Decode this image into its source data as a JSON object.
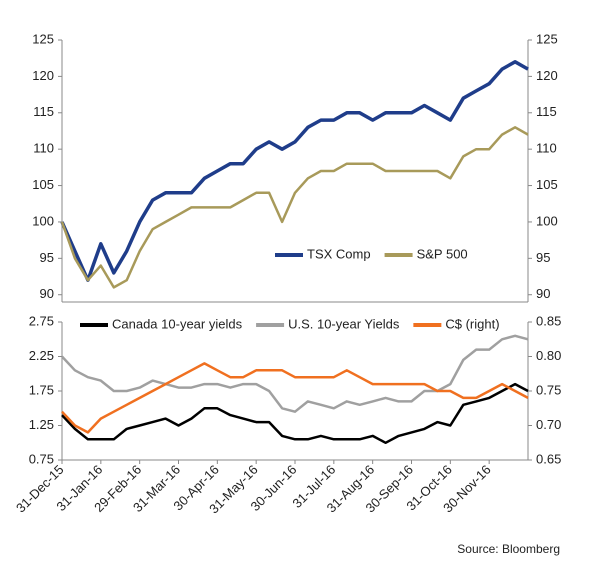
{
  "chart_data": [
    {
      "type": "line",
      "series": [
        {
          "name": "TSX Comp",
          "color": "#1f3d8a",
          "values": [
            100,
            96,
            92,
            97,
            93,
            96,
            100,
            103,
            104,
            104,
            104,
            106,
            107,
            108,
            108,
            110,
            111,
            110,
            111,
            113,
            114,
            114,
            115,
            115,
            114,
            115,
            115,
            115,
            116,
            115,
            114,
            117,
            118,
            119,
            121,
            122,
            121
          ]
        },
        {
          "name": "S&P 500",
          "color": "#a89a5a",
          "values": [
            100,
            95,
            92,
            94,
            91,
            92,
            96,
            99,
            100,
            101,
            102,
            102,
            102,
            102,
            103,
            104,
            104,
            100,
            104,
            106,
            107,
            107,
            108,
            108,
            108,
            107,
            107,
            107,
            107,
            107,
            106,
            109,
            110,
            110,
            112,
            113,
            112
          ]
        }
      ],
      "ylim": [
        89,
        125
      ],
      "yticks": [
        90,
        95,
        100,
        105,
        110,
        115,
        120,
        125
      ]
    },
    {
      "type": "line",
      "categories": [
        "31-Dec-15",
        null,
        null,
        "31-Jan-16",
        null,
        null,
        "29-Feb-16",
        null,
        null,
        "31-Mar-16",
        null,
        null,
        "30-Apr-16",
        null,
        null,
        "31-May-16",
        null,
        null,
        "30-Jun-16",
        null,
        null,
        "31-Jul-16",
        null,
        null,
        "31-Aug-16",
        null,
        null,
        "30-Sep-16",
        null,
        null,
        "31-Oct-16",
        null,
        null,
        "30-Nov-16",
        null,
        null,
        null
      ],
      "series": [
        {
          "name": "Canada 10-year yields",
          "color": "#000000",
          "values": [
            1.4,
            1.2,
            1.05,
            1.05,
            1.05,
            1.2,
            1.25,
            1.3,
            1.35,
            1.25,
            1.35,
            1.5,
            1.5,
            1.4,
            1.35,
            1.3,
            1.3,
            1.1,
            1.05,
            1.05,
            1.1,
            1.05,
            1.05,
            1.05,
            1.1,
            1.0,
            1.1,
            1.15,
            1.2,
            1.3,
            1.25,
            1.55,
            1.6,
            1.65,
            1.75,
            1.85,
            1.75
          ]
        },
        {
          "name": "U.S. 10-year Yields",
          "color": "#a0a0a0",
          "values": [
            2.25,
            2.05,
            1.95,
            1.9,
            1.75,
            1.75,
            1.8,
            1.9,
            1.85,
            1.8,
            1.8,
            1.85,
            1.85,
            1.8,
            1.85,
            1.85,
            1.75,
            1.5,
            1.45,
            1.6,
            1.55,
            1.5,
            1.6,
            1.55,
            1.6,
            1.65,
            1.6,
            1.6,
            1.75,
            1.75,
            1.85,
            2.2,
            2.35,
            2.35,
            2.5,
            2.55,
            2.5
          ]
        },
        {
          "name": "C$ (right)",
          "color": "#f07020",
          "axis": "y2",
          "values": [
            0.72,
            0.7,
            0.69,
            0.71,
            0.72,
            0.73,
            0.74,
            0.75,
            0.76,
            0.77,
            0.78,
            0.79,
            0.78,
            0.77,
            0.77,
            0.78,
            0.78,
            0.78,
            0.77,
            0.77,
            0.77,
            0.77,
            0.78,
            0.77,
            0.76,
            0.76,
            0.76,
            0.76,
            0.76,
            0.75,
            0.75,
            0.74,
            0.74,
            0.75,
            0.76,
            0.75,
            0.74
          ]
        }
      ],
      "ylim": [
        0.75,
        2.75
      ],
      "yticks": [
        0.75,
        1.25,
        1.75,
        2.25,
        2.75
      ],
      "y2lim": [
        0.65,
        0.85
      ],
      "y2ticks": [
        0.65,
        {
          "value": 0.7,
          "label": "0.70"
        },
        0.75,
        {
          "value": 0.8,
          "label": "0.80"
        },
        0.85
      ]
    }
  ],
  "source": "Source: Bloomberg"
}
